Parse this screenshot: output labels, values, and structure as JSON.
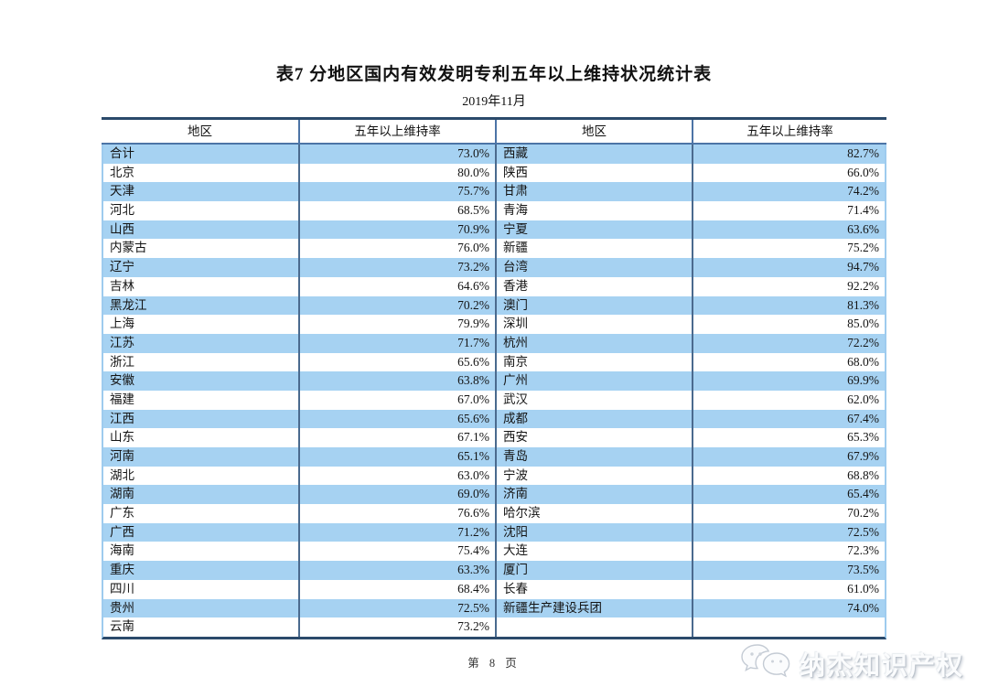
{
  "page": {
    "title": "表7  分地区国内有效发明专利五年以上维持状况统计表",
    "subtitle": "2019年11月",
    "footer": "第 8 页",
    "watermark": "纳杰知识产权"
  },
  "table": {
    "headers": [
      "地区",
      "五年以上维持率",
      "地区",
      "五年以上维持率"
    ],
    "rows": [
      [
        "合计",
        "73.0%",
        "西藏",
        "82.7%"
      ],
      [
        "北京",
        "80.0%",
        "陕西",
        "66.0%"
      ],
      [
        "天津",
        "75.7%",
        "甘肃",
        "74.2%"
      ],
      [
        "河北",
        "68.5%",
        "青海",
        "71.4%"
      ],
      [
        "山西",
        "70.9%",
        "宁夏",
        "63.6%"
      ],
      [
        "内蒙古",
        "76.0%",
        "新疆",
        "75.2%"
      ],
      [
        "辽宁",
        "73.2%",
        "台湾",
        "94.7%"
      ],
      [
        "吉林",
        "64.6%",
        "香港",
        "92.2%"
      ],
      [
        "黑龙江",
        "70.2%",
        "澳门",
        "81.3%"
      ],
      [
        "上海",
        "79.9%",
        "深圳",
        "85.0%"
      ],
      [
        "江苏",
        "71.7%",
        "杭州",
        "72.2%"
      ],
      [
        "浙江",
        "65.6%",
        "南京",
        "68.0%"
      ],
      [
        "安徽",
        "63.8%",
        "广州",
        "69.9%"
      ],
      [
        "福建",
        "67.0%",
        "武汉",
        "62.0%"
      ],
      [
        "江西",
        "65.6%",
        "成都",
        "67.4%"
      ],
      [
        "山东",
        "67.1%",
        "西安",
        "65.3%"
      ],
      [
        "河南",
        "65.1%",
        "青岛",
        "67.9%"
      ],
      [
        "湖北",
        "63.0%",
        "宁波",
        "68.8%"
      ],
      [
        "湖南",
        "69.0%",
        "济南",
        "65.4%"
      ],
      [
        "广东",
        "76.6%",
        "哈尔滨",
        "70.2%"
      ],
      [
        "广西",
        "71.2%",
        "沈阳",
        "72.5%"
      ],
      [
        "海南",
        "75.4%",
        "大连",
        "72.3%"
      ],
      [
        "重庆",
        "63.3%",
        "厦门",
        "73.5%"
      ],
      [
        "四川",
        "68.4%",
        "长春",
        "61.0%"
      ],
      [
        "贵州",
        "72.5%",
        "新疆生产建设兵团",
        "74.0%"
      ],
      [
        "云南",
        "73.2%",
        "",
        ""
      ]
    ]
  },
  "colors": {
    "row_blue": "#a6d2f2",
    "border_dark": "#2b4a6b",
    "header_divider": "#4c74a6",
    "body_divider": "#4a6a8e",
    "table_edge": "#9ecbee"
  }
}
